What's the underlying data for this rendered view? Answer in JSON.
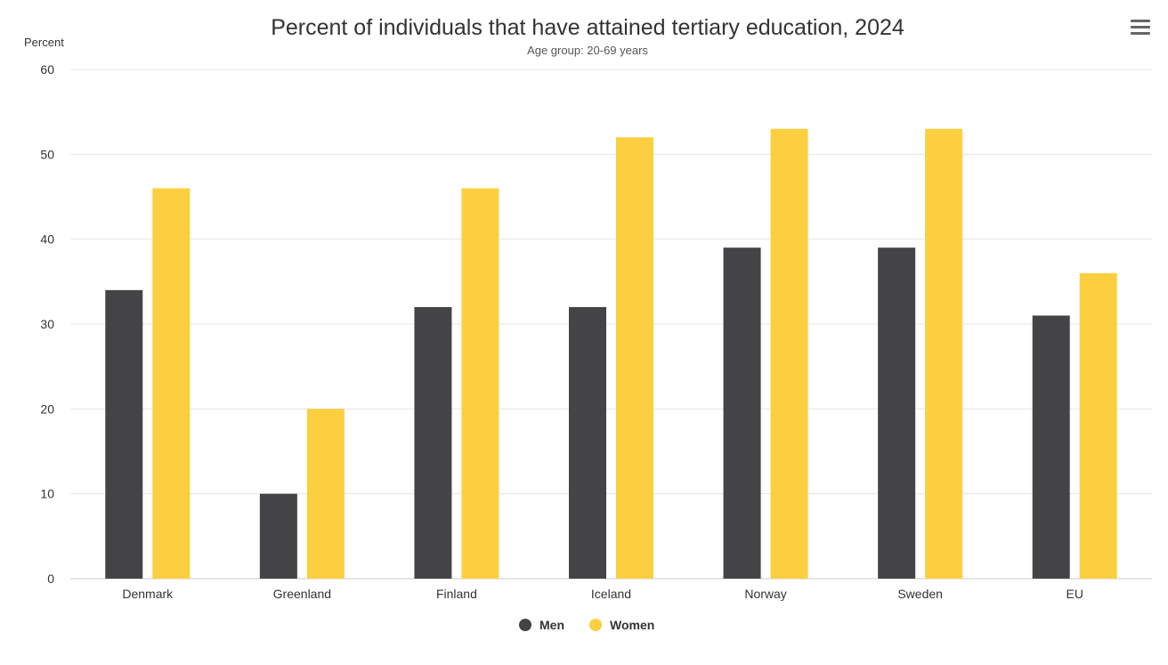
{
  "menu": {
    "icon": "hamburger-menu-icon"
  },
  "colors": {
    "men": "#444446",
    "women": "#fccf40",
    "grid": "#e6e6e6",
    "axis": "#cccccc",
    "text": "#333333",
    "muted": "#555555"
  },
  "chart_data": {
    "type": "bar",
    "title": "Percent of individuals that have attained tertiary education, 2024",
    "subtitle": "Age group: 20-69 years",
    "ylabel": "Percent",
    "xlabel": "",
    "ylim": [
      0,
      60
    ],
    "yticks": [
      0,
      10,
      20,
      30,
      40,
      50,
      60
    ],
    "grid": true,
    "legend_position": "bottom-center",
    "categories": [
      "Denmark",
      "Greenland",
      "Finland",
      "Iceland",
      "Norway",
      "Sweden",
      "EU"
    ],
    "series": [
      {
        "name": "Men",
        "color": "#444446",
        "values": [
          34,
          10,
          32,
          32,
          39,
          39,
          31
        ]
      },
      {
        "name": "Women",
        "color": "#fccf40",
        "values": [
          46,
          20,
          46,
          52,
          53,
          53,
          36
        ]
      }
    ]
  }
}
